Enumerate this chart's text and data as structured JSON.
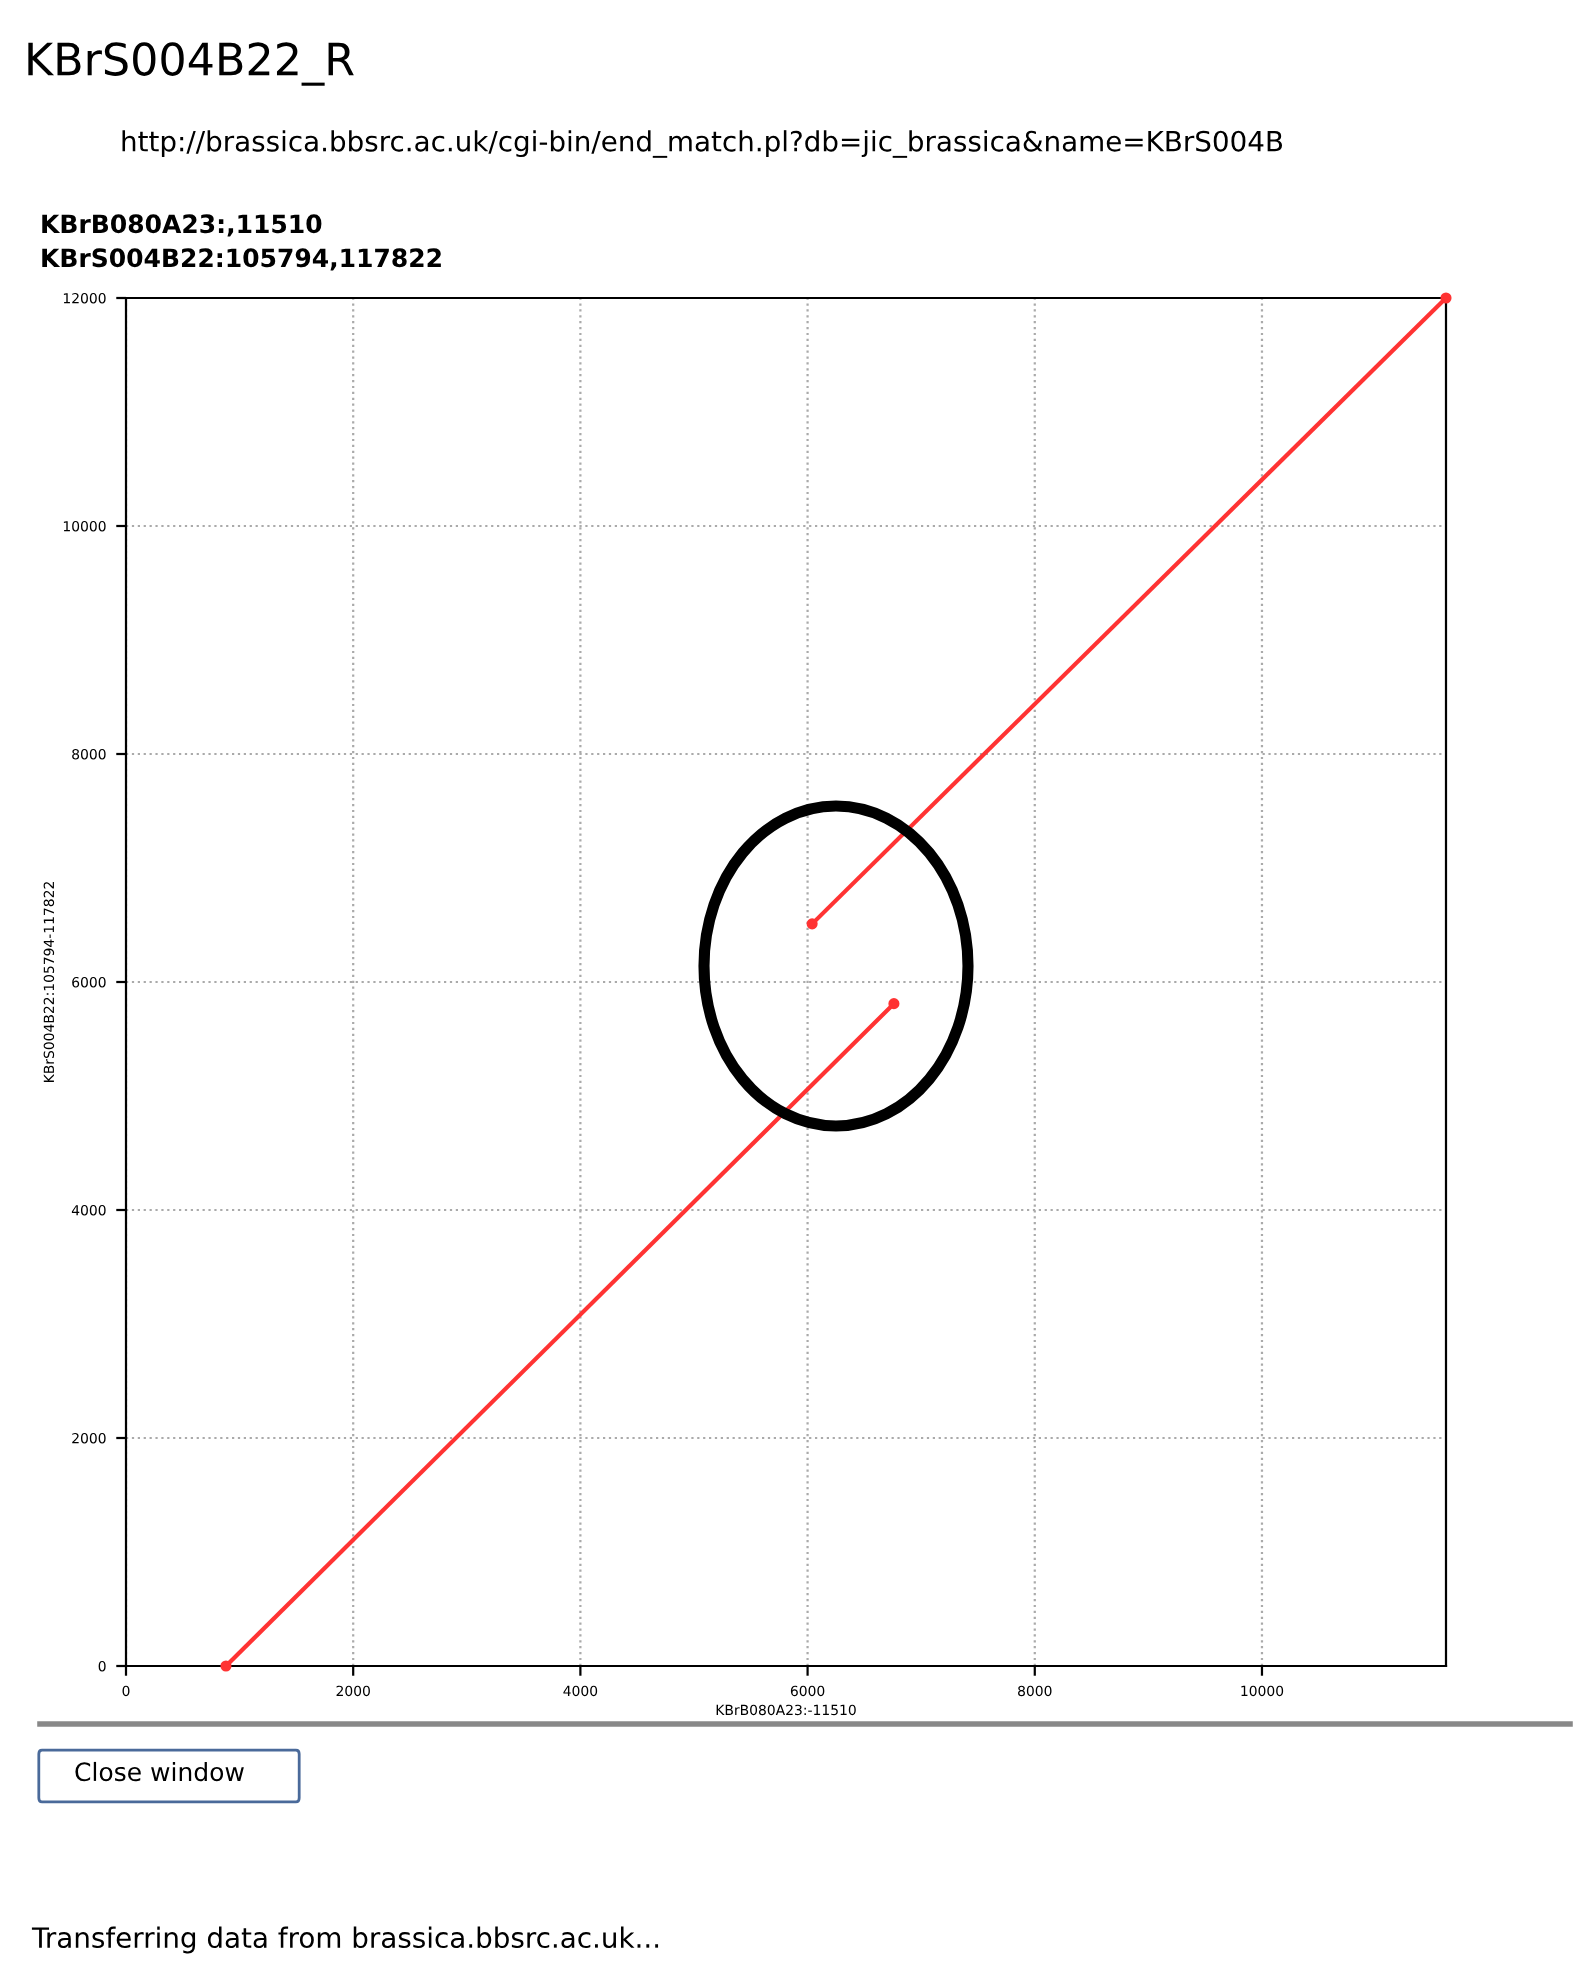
{
  "chart_data": {
    "type": "line",
    "title": "KBrB080A23:,11510",
    "subtitle": "KBrS004B22:105794,117822",
    "xlabel": "KBrB080A23:-11510",
    "ylabel": "KBrS004B22:105794-117822",
    "series": [
      {
        "color": "#ff3333",
        "x": [
          880,
          6760
        ],
        "values": [
          0,
          5810
        ]
      },
      {
        "color": "#ff3333",
        "x": [
          6040,
          11620
        ],
        "values": [
          6510,
          12000
        ]
      }
    ],
    "xlim": [
      0,
      11620
    ],
    "ylim": [
      0,
      12000
    ],
    "xticks": [
      0,
      2000,
      4000,
      6000,
      8000,
      10000
    ],
    "yticks": [
      0,
      2000,
      4000,
      6000,
      8000,
      10000,
      12000
    ],
    "grid": true,
    "marker": "circle",
    "line_style": "solid",
    "annotations": [
      "KBrS004B22_R",
      "http://brassica.bbsrc.ac.uk/cgi-bin/end_match.pl?db=jic_brassica&name=KBrS004B",
      "Close window",
      "Transferring data from brassica.bbsrc.ac.uk..."
    ]
  }
}
